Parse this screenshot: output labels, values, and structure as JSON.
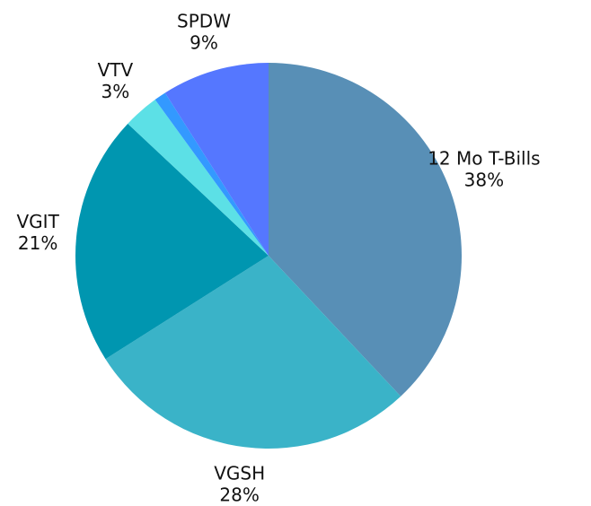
{
  "chart_data": {
    "type": "pie",
    "categories": [
      "12 Mo T-Bills",
      "VGSH",
      "VGIT",
      "VTV",
      null,
      "SPDW"
    ],
    "values": [
      38,
      28,
      21,
      3,
      1,
      9
    ],
    "value_labels": [
      "38%",
      "28%",
      "21%",
      "3%",
      null,
      "9%"
    ],
    "colors": [
      "#588fb6",
      "#3ab3c8",
      "#0096b0",
      "#5ce0e6",
      "#3399ff",
      "#5577ff"
    ]
  }
}
